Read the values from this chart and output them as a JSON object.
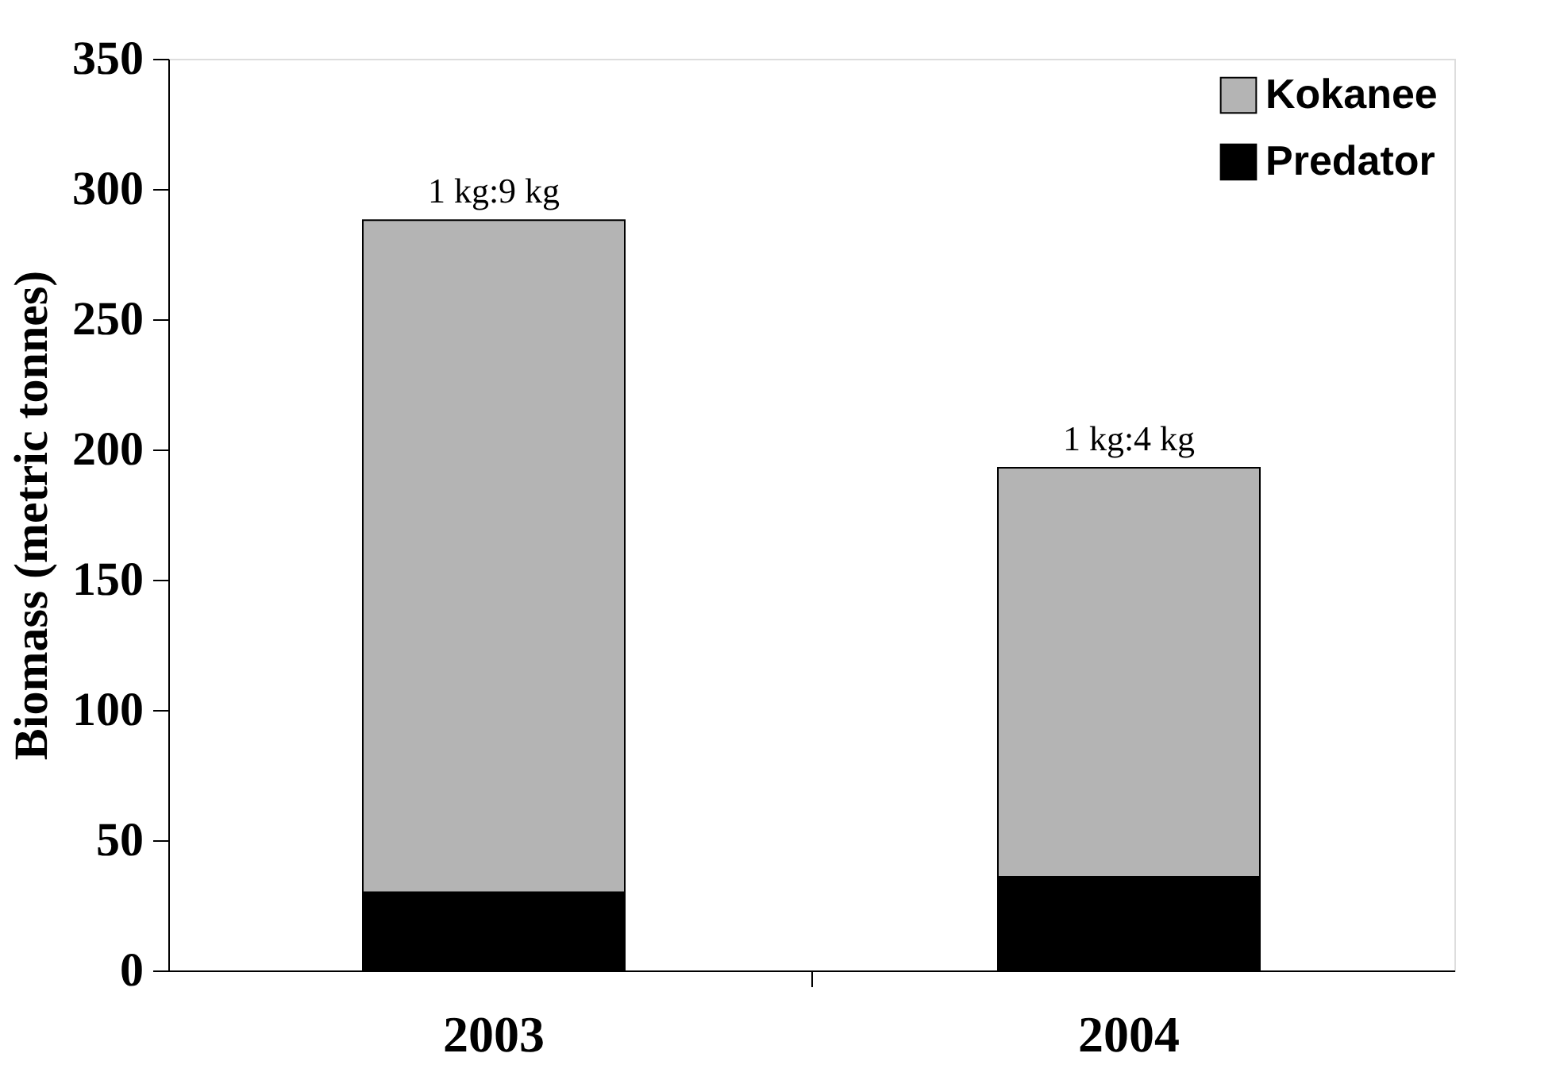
{
  "chart_data": {
    "type": "bar",
    "stacked": true,
    "ylabel": "Biomass (metric tonnes)",
    "categories": [
      "2003",
      "2004"
    ],
    "series": [
      {
        "name": "Predator",
        "color": "#000000",
        "values": [
          30,
          36
        ]
      },
      {
        "name": "Kokanee",
        "color": "#b4b4b4",
        "values": [
          258,
          157
        ]
      }
    ],
    "ylim": [
      0,
      350
    ],
    "yticks": [
      0,
      50,
      100,
      150,
      200,
      250,
      300,
      350
    ],
    "grid": false,
    "legend": "top right",
    "annotations": [
      {
        "text": "1 kg:9 kg",
        "x": "2003",
        "y": 288
      },
      {
        "text": "1 kg:4 kg",
        "x": "2004",
        "y": 193
      }
    ]
  }
}
